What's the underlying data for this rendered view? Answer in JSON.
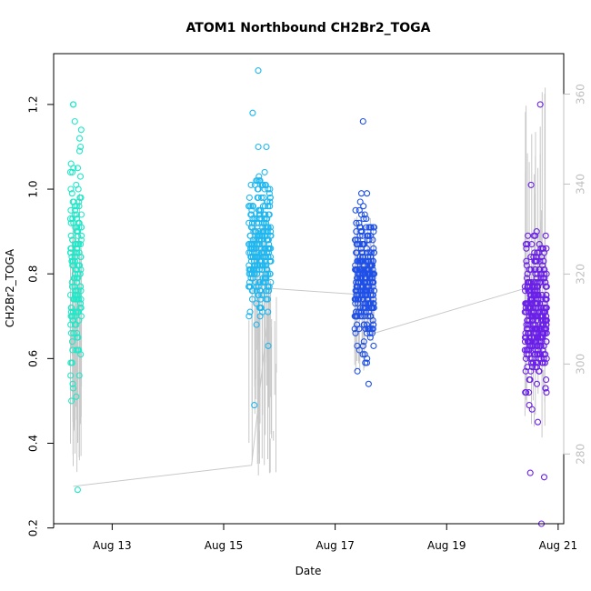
{
  "chart_data": {
    "type": "scatter",
    "title": "ATOM1 Northbound CH2Br2_TOGA",
    "xlabel": "Date",
    "ylabel": "CH2Br2_TOGA",
    "x_unit": "days in August",
    "xlim": [
      11.95,
      21.1
    ],
    "ylim": [
      0.21,
      1.32
    ],
    "x_ticks": [
      {
        "value": 13,
        "label": "Aug 13"
      },
      {
        "value": 15,
        "label": "Aug 15"
      },
      {
        "value": 17,
        "label": "Aug 17"
      },
      {
        "value": 19,
        "label": "Aug 19"
      },
      {
        "value": 21,
        "label": "Aug 21"
      }
    ],
    "y_ticks": [
      0.2,
      0.4,
      0.6,
      0.8,
      1.0,
      1.2
    ],
    "y_tick_labels": [
      "0.2",
      "0.4",
      "0.6",
      "0.8",
      "1.0",
      "1.2"
    ],
    "y2_label": "",
    "y2lim": [
      264.5,
      369.0
    ],
    "y2_ticks": [
      280,
      300,
      320,
      340,
      360
    ],
    "series": [
      {
        "name": "CH2Br2_TOGA",
        "axis": "left",
        "style": "open-circles",
        "segments": [
          {
            "x_range": [
              12.25,
              12.45
            ],
            "color": "#20e8c8",
            "n": 160,
            "mean": 0.82,
            "sd": 0.18,
            "lo": 0.29,
            "hi": 1.2,
            "highlights": [
              [
                12.3,
                1.2
              ],
              [
                12.38,
                0.29
              ],
              [
                12.27,
                0.5
              ],
              [
                12.33,
                1.16
              ],
              [
                12.29,
                0.62
              ]
            ]
          },
          {
            "x_range": [
              15.45,
              15.85
            ],
            "color": "#1fb7f0",
            "n": 260,
            "mean": 0.86,
            "sd": 0.12,
            "lo": 0.49,
            "hi": 1.28,
            "highlights": [
              [
                15.62,
                1.28
              ],
              [
                15.52,
                1.18
              ],
              [
                15.55,
                0.49
              ],
              [
                15.8,
                0.63
              ]
            ]
          },
          {
            "x_range": [
              17.35,
              17.7
            ],
            "color": "#1f50e8",
            "n": 280,
            "mean": 0.79,
            "sd": 0.11,
            "lo": 0.54,
            "hi": 1.16,
            "highlights": [
              [
                17.5,
                1.16
              ],
              [
                17.6,
                0.54
              ],
              [
                17.4,
                0.57
              ]
            ]
          },
          {
            "x_range": [
              20.4,
              20.8
            ],
            "color": "#6a20e8",
            "n": 360,
            "mean": 0.71,
            "sd": 0.12,
            "lo": 0.21,
            "hi": 1.2,
            "highlights": [
              [
                20.7,
                0.21
              ],
              [
                20.68,
                1.2
              ],
              [
                20.5,
                0.33
              ],
              [
                20.75,
                0.32
              ]
            ]
          }
        ]
      },
      {
        "name": "Track",
        "axis": "right",
        "style": "line",
        "color": "#c8c8c8",
        "points": [
          [
            12.3,
            272.8
          ],
          [
            15.5,
            277.5
          ],
          [
            15.85,
            316.8
          ],
          [
            17.4,
            315.5
          ],
          [
            17.6,
            306.5
          ],
          [
            20.4,
            316.8
          ]
        ],
        "spike_segments": [
          {
            "x_range": [
              12.25,
              12.45
            ],
            "lo": 273,
            "hi": 338
          },
          {
            "x_range": [
              15.45,
              15.95
            ],
            "lo": 275,
            "hi": 334
          },
          {
            "x_range": [
              17.35,
              17.7
            ],
            "lo": 298,
            "hi": 333
          },
          {
            "x_range": [
              20.4,
              20.8
            ],
            "lo": 283,
            "hi": 363
          }
        ]
      }
    ]
  }
}
